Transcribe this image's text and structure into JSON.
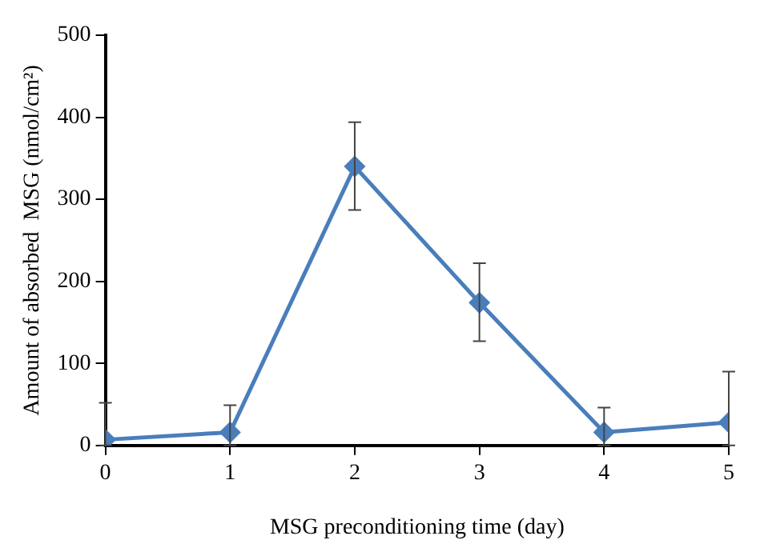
{
  "chart_data": {
    "type": "line",
    "xlabel": "MSG preconditioning time (day)",
    "ylabel": "Amount of absorbed  MSG (nmol/cm²)",
    "x": [
      0,
      1,
      2,
      3,
      4,
      5
    ],
    "series": [
      {
        "color": "#4a7ebb",
        "values": [
          7,
          16,
          340,
          174,
          16,
          28
        ],
        "errors": [
          [
            0,
            52
          ],
          [
            0,
            49
          ],
          [
            287,
            394
          ],
          [
            127,
            222
          ],
          [
            0,
            46
          ],
          [
            0,
            90
          ]
        ]
      }
    ],
    "xlim": [
      0,
      5
    ],
    "xticks": [
      0,
      1,
      2,
      3,
      4,
      5
    ],
    "ylim": [
      0,
      500
    ],
    "yticks": [
      0,
      100,
      200,
      300,
      400,
      500
    ],
    "grid": false,
    "legend": false,
    "marker": "diamond",
    "line_style": "solid"
  }
}
